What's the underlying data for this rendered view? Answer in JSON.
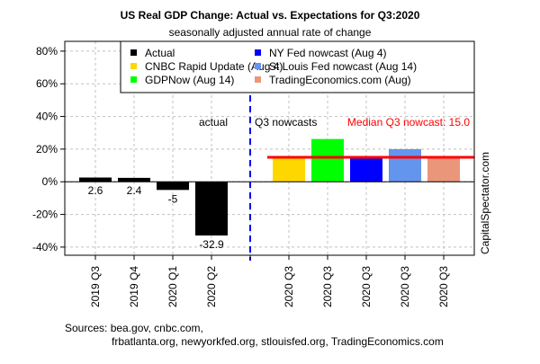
{
  "chart_data": {
    "type": "bar",
    "title": "US Real GDP Change: Actual vs. Expectations for Q3:2020",
    "subtitle": "seasonally adjusted annual rate of change",
    "categories": [
      "2019 Q3",
      "2019 Q4",
      "2020 Q1",
      "2020 Q2",
      "",
      "2020 Q3",
      "2020 Q3",
      "2020 Q3",
      "2020 Q3",
      "2020 Q3"
    ],
    "series": [
      {
        "name": "Actual",
        "color": "#000000",
        "values": [
          2.6,
          2.4,
          -5,
          -32.9,
          null,
          null,
          null,
          null,
          null,
          null
        ]
      },
      {
        "name": "CNBC Rapid Update (Aug 4)",
        "color": "#FFD700",
        "values": [
          null,
          null,
          null,
          null,
          null,
          15.0,
          null,
          null,
          null,
          null
        ]
      },
      {
        "name": "GDPNow (Aug 14)",
        "color": "#00FF00",
        "values": [
          null,
          null,
          null,
          null,
          null,
          null,
          26.2,
          null,
          null,
          null
        ]
      },
      {
        "name": "NY Fed nowcast (Aug 4)",
        "color": "#0000FF",
        "values": [
          null,
          null,
          null,
          null,
          null,
          null,
          null,
          14.5,
          null,
          null
        ]
      },
      {
        "name": "St Louis Fed nowcast (Aug 14)",
        "color": "#6495ED",
        "values": [
          null,
          null,
          null,
          null,
          null,
          null,
          null,
          null,
          20.0,
          null
        ]
      },
      {
        "name": "TradingEconomics.com (Aug)",
        "color": "#E9967A",
        "values": [
          null,
          null,
          null,
          null,
          null,
          null,
          null,
          null,
          null,
          14.6
        ]
      }
    ],
    "data_labels": [
      "2.6",
      "2.4",
      "-5",
      "-32.9"
    ],
    "ylim": [
      -45,
      86
    ],
    "yticks": [
      -40,
      -20,
      0,
      20,
      40,
      60,
      80
    ],
    "ytick_labels": [
      "-40%",
      "-20%",
      "0%",
      "20%",
      "40%",
      "60%",
      "80%"
    ],
    "grid": true,
    "legend_placement": "top-right",
    "median_line": {
      "value": 15.0,
      "color": "#FF0000",
      "label": "Median Q3 nowcast:  15.0"
    },
    "divider_color": "#0000FF",
    "annotations": {
      "actual": "actual",
      "nowcasts": "Q3 nowcasts"
    },
    "watermark": "CapitalSpectator.com",
    "sources_line1": "Sources: bea.gov, cnbc.com,",
    "sources_line2": "frbatlanta.org, newyorkfed.org, stlouisfed.org, TradingEconomics.com"
  }
}
